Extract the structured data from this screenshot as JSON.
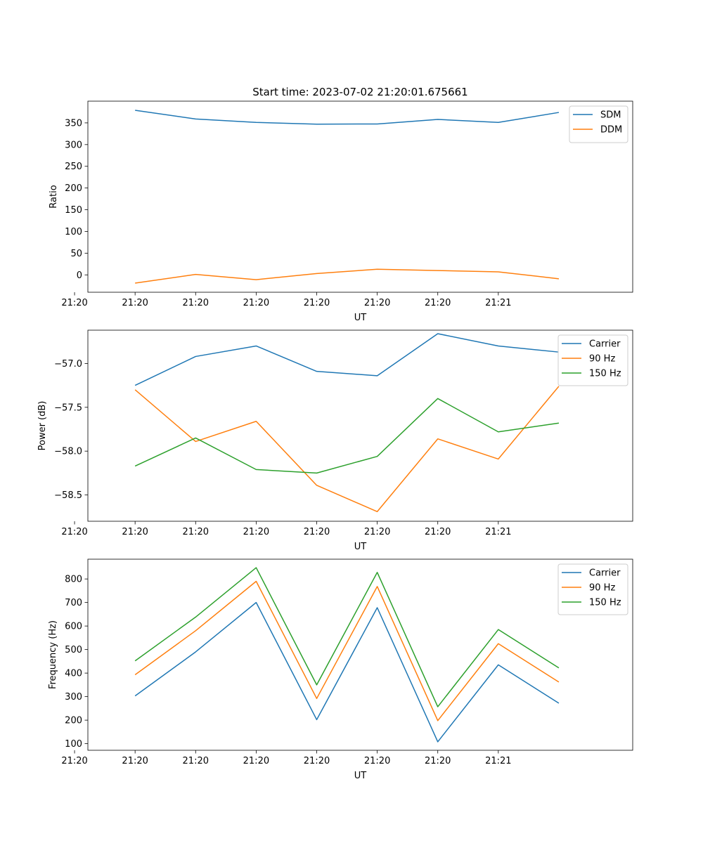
{
  "chart_data": [
    {
      "type": "line",
      "title": "Start time: 2023-07-02 21:20:01.675661",
      "xlabel": "UT",
      "ylabel": "Ratio",
      "x_tick_labels": [
        "21:20",
        "21:20",
        "21:20",
        "21:20",
        "21:20",
        "21:20",
        "21:20",
        "21:21"
      ],
      "ylim": [
        -40,
        400
      ],
      "y_ticks": [
        0,
        50,
        100,
        150,
        200,
        250,
        300,
        350
      ],
      "legend_position": "top-right",
      "x": [
        1,
        2,
        3,
        4,
        5,
        6,
        7,
        8
      ],
      "xlim": [
        0.22,
        9.22
      ],
      "series": [
        {
          "name": "SDM",
          "color": "#1f77b4",
          "values": [
            379,
            359,
            351,
            347,
            347.5,
            358,
            351,
            374
          ]
        },
        {
          "name": "DDM",
          "color": "#ff7f0e",
          "values": [
            -19,
            1,
            -11,
            3,
            13,
            10,
            7,
            -9
          ]
        }
      ]
    },
    {
      "type": "line",
      "title": "",
      "xlabel": "UT",
      "ylabel": "Power (dB)",
      "x_tick_labels": [
        "21:20",
        "21:20",
        "21:20",
        "21:20",
        "21:20",
        "21:20",
        "21:20",
        "21:21"
      ],
      "ylim": [
        -58.8,
        -56.62
      ],
      "y_ticks": [
        -58.5,
        -58.0,
        -57.5,
        -57.0
      ],
      "y_tick_labels": [
        "−58.5",
        "−58.0",
        "−57.5",
        "−57.0"
      ],
      "legend_position": "top-right",
      "x": [
        1,
        2,
        3,
        4,
        5,
        6,
        7,
        8
      ],
      "xlim": [
        0.22,
        9.22
      ],
      "series": [
        {
          "name": "Carrier",
          "color": "#1f77b4",
          "values": [
            -57.25,
            -56.92,
            -56.8,
            -57.09,
            -57.14,
            -56.66,
            -56.8,
            -56.87
          ]
        },
        {
          "name": "90 Hz",
          "color": "#ff7f0e",
          "values": [
            -57.3,
            -57.89,
            -57.66,
            -58.39,
            -58.69,
            -57.86,
            -58.09,
            -57.26
          ]
        },
        {
          "name": "150 Hz",
          "color": "#2ca02c",
          "values": [
            -58.17,
            -57.85,
            -58.21,
            -58.25,
            -58.06,
            -57.4,
            -57.78,
            -57.68
          ]
        }
      ]
    },
    {
      "type": "line",
      "title": "",
      "xlabel": "UT",
      "ylabel": "Frequency (Hz)",
      "x_tick_labels": [
        "21:20",
        "21:20",
        "21:20",
        "21:20",
        "21:20",
        "21:20",
        "21:20",
        "21:21"
      ],
      "ylim": [
        72,
        884
      ],
      "y_ticks": [
        100,
        200,
        300,
        400,
        500,
        600,
        700,
        800
      ],
      "legend_position": "top-right",
      "x": [
        1,
        2,
        3,
        4,
        5,
        6,
        7,
        8
      ],
      "xlim": [
        0.22,
        9.22
      ],
      "series": [
        {
          "name": "Carrier",
          "color": "#1f77b4",
          "values": [
            303,
            490,
            700,
            202,
            678,
            108,
            435,
            272
          ]
        },
        {
          "name": "90 Hz",
          "color": "#ff7f0e",
          "values": [
            393,
            580,
            790,
            292,
            768,
            198,
            525,
            362
          ]
        },
        {
          "name": "150 Hz",
          "color": "#2ca02c",
          "values": [
            452,
            638,
            848,
            350,
            828,
            257,
            585,
            422
          ]
        }
      ]
    }
  ]
}
